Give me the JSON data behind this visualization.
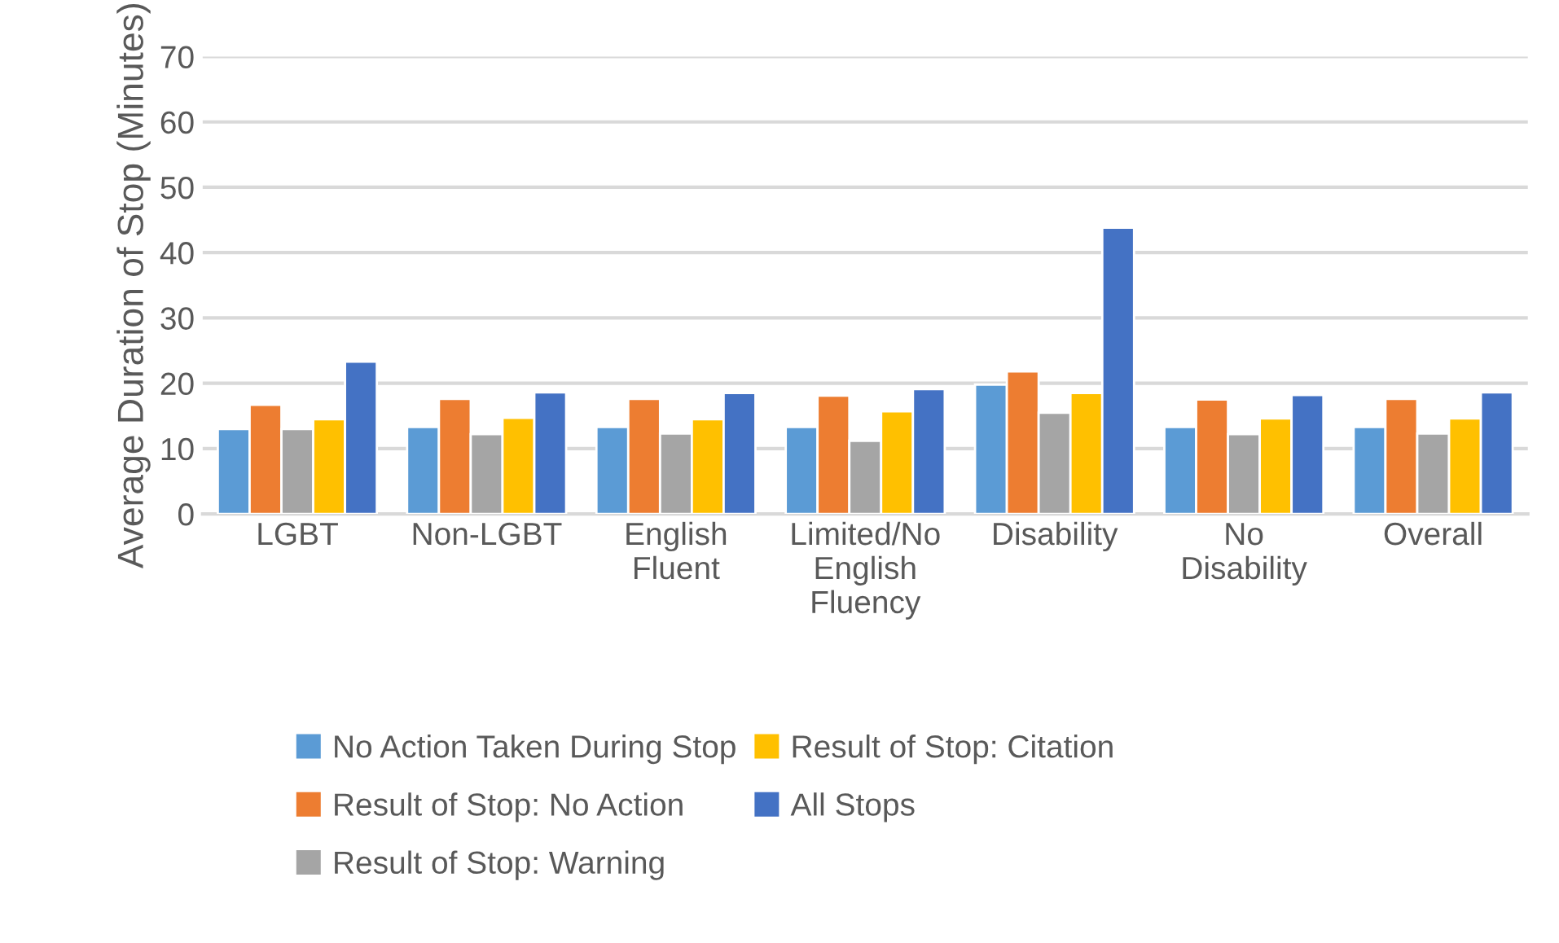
{
  "chart_data": {
    "type": "bar",
    "ylabel": "Average Duration of Stop (Minutes)",
    "categories": [
      "LGBT",
      "Non-LGBT",
      "English\nFluent",
      "Limited/No\nEnglish\nFluency",
      "Disability",
      "No\nDisability",
      "Overall"
    ],
    "series": [
      {
        "name": "No Action Taken During Stop",
        "color": "#5b9bd5",
        "values": [
          13,
          13.3,
          13.3,
          13.3,
          19.8,
          13.3,
          13.3
        ]
      },
      {
        "name": "Result of Stop: No Action",
        "color": "#ed7d31",
        "values": [
          16.7,
          17.6,
          17.6,
          18.1,
          21.8,
          17.5,
          17.6
        ]
      },
      {
        "name": "Result of Stop: Warning",
        "color": "#a5a5a5",
        "values": [
          13,
          12.2,
          12.3,
          11.2,
          15.5,
          12.2,
          12.3
        ]
      },
      {
        "name": "Result of Stop: Citation",
        "color": "#ffc000",
        "values": [
          14.5,
          14.7,
          14.5,
          15.7,
          18.5,
          14.6,
          14.6
        ]
      },
      {
        "name": "All Stops",
        "color": "#4472c4",
        "values": [
          23.3,
          18.6,
          18.5,
          19.1,
          43.8,
          18.2,
          18.6
        ]
      }
    ],
    "ylim": [
      0,
      70
    ],
    "yticks": [
      0,
      10,
      20,
      30,
      40,
      50,
      60,
      70
    ],
    "grid": "y",
    "legend": "bottom"
  }
}
